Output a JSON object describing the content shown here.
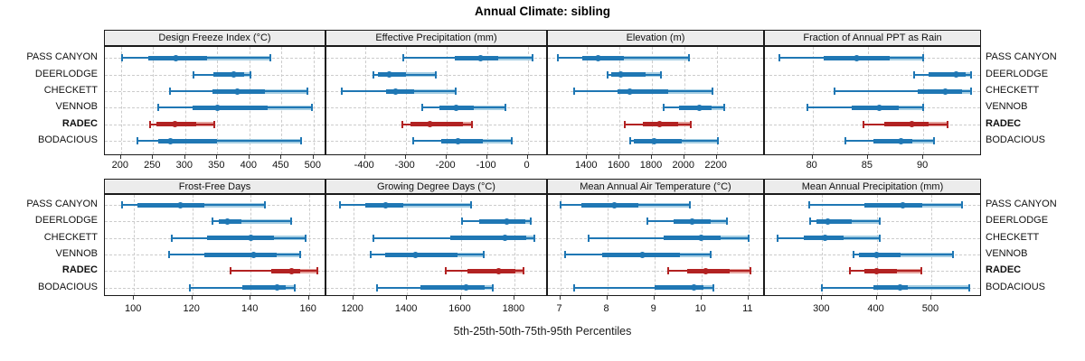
{
  "title": "Annual Climate: sibling",
  "footer": "5th-25th-50th-75th-95th Percentiles",
  "sites": [
    "PASS CANYON",
    "DEERLODGE",
    "CHECKETT",
    "VENNOB",
    "RADEC",
    "BODACIOUS"
  ],
  "highlight_site": "RADEC",
  "colors": {
    "blue": "#1f77b4",
    "blue_light": "#a6cee3",
    "red": "#b22222",
    "red_light": "#e4a29c",
    "grid": "#cccccc",
    "strip_bg": "#ececec",
    "border": "#1a1a1a"
  },
  "chart_data": {
    "type": "box",
    "note": "Dot-and-interval percentile plot; each row shows 5th, 25th, 50th, 75th, 95th percentiles per site. RADEC row highlighted in red.",
    "percentile_labels": [
      "5th",
      "25th",
      "50th",
      "75th",
      "95th"
    ],
    "legend_position": "none",
    "grid": "dashed",
    "panels": [
      {
        "key": "dfi",
        "title": "Design Freeze Index (°C)",
        "grid_row": 0,
        "grid_col": 0,
        "axis": {
          "min": 175,
          "max": 520,
          "ticks": [
            200,
            250,
            300,
            350,
            400,
            450,
            500
          ]
        },
        "stats": [
          {
            "site": "PASS CANYON",
            "p": [
              202,
              243,
              286,
              334,
              433
            ]
          },
          {
            "site": "DEERLODGE",
            "p": [
              313,
              344,
              375,
              392,
              401
            ]
          },
          {
            "site": "CHECKETT",
            "p": [
              277,
              343,
              381,
              424,
              491
            ]
          },
          {
            "site": "VENNOB",
            "p": [
              258,
              311,
              350,
              428,
              497
            ]
          },
          {
            "site": "RADEC",
            "p": [
              246,
              255,
              284,
              318,
              345
            ]
          },
          {
            "site": "BODACIOUS",
            "p": [
              226,
              258,
              277,
              350,
              480
            ]
          }
        ]
      },
      {
        "key": "ep",
        "title": "Effective Precipitation (mm)",
        "grid_row": 0,
        "grid_col": 1,
        "axis": {
          "min": -495,
          "max": 50,
          "ticks": [
            -400,
            -300,
            -200,
            -100,
            0
          ]
        },
        "stats": [
          {
            "site": "PASS CANYON",
            "p": [
              -305,
              -180,
              -115,
              -73,
              12
            ]
          },
          {
            "site": "DEERLODGE",
            "p": [
              -380,
              -368,
              -340,
              -300,
              -225
            ]
          },
          {
            "site": "CHECKETT",
            "p": [
              -457,
              -348,
              -325,
              -280,
              -178
            ]
          },
          {
            "site": "VENNOB",
            "p": [
              -259,
              -218,
              -177,
              -132,
              -54
            ]
          },
          {
            "site": "RADEC",
            "p": [
              -309,
              -288,
              -240,
              -158,
              -138
            ]
          },
          {
            "site": "BODACIOUS",
            "p": [
              -281,
              -213,
              -172,
              -110,
              -38
            ]
          }
        ]
      },
      {
        "key": "elev",
        "title": "Elevation (m)",
        "grid_row": 0,
        "grid_col": 2,
        "axis": {
          "min": 1158,
          "max": 2498,
          "ticks": [
            1400,
            1600,
            1800,
            2000,
            2200
          ]
        },
        "stats": [
          {
            "site": "PASS CANYON",
            "p": [
              1220,
              1370,
              1465,
              1625,
              2030
            ]
          },
          {
            "site": "DEERLODGE",
            "p": [
              1525,
              1550,
              1605,
              1760,
              1855
            ]
          },
          {
            "site": "CHECKETT",
            "p": [
              1320,
              1585,
              1665,
              1900,
              2175
            ]
          },
          {
            "site": "VENNOB",
            "p": [
              1870,
              1970,
              2095,
              2170,
              2245
            ]
          },
          {
            "site": "RADEC",
            "p": [
              1630,
              1745,
              1850,
              1965,
              2040
            ]
          },
          {
            "site": "BODACIOUS",
            "p": [
              1665,
              1690,
              1815,
              1985,
              2210
            ]
          }
        ]
      },
      {
        "key": "frac",
        "title": "Fraction of Annual PPT as Rain",
        "grid_row": 0,
        "grid_col": 3,
        "axis": {
          "min": 75.7,
          "max": 95.3,
          "ticks": [
            80,
            85,
            90
          ]
        },
        "stats": [
          {
            "site": "PASS CANYON",
            "p": [
              77,
              81,
              84,
              87,
              90
            ]
          },
          {
            "site": "DEERLODGE",
            "p": [
              89.2,
              90.5,
              93,
              93.8,
              94.3
            ]
          },
          {
            "site": "CHECKETT",
            "p": [
              82,
              89.5,
              92,
              93.5,
              94.3
            ]
          },
          {
            "site": "VENNOB",
            "p": [
              79.5,
              83.5,
              86,
              87.8,
              90
            ]
          },
          {
            "site": "RADEC",
            "p": [
              84.6,
              86.5,
              89,
              90.5,
              92.2
            ]
          },
          {
            "site": "BODACIOUS",
            "p": [
              83,
              85.5,
              88,
              89,
              91
            ]
          }
        ]
      },
      {
        "key": "ffd",
        "title": "Frost-Free Days",
        "grid_row": 1,
        "grid_col": 0,
        "axis": {
          "min": 90,
          "max": 166,
          "ticks": [
            100,
            120,
            140,
            160
          ]
        },
        "stats": [
          {
            "site": "PASS CANYON",
            "p": [
              96,
              101,
              116,
              124,
              145
            ]
          },
          {
            "site": "DEERLODGE",
            "p": [
              127,
              129,
              132,
              137,
              154
            ]
          },
          {
            "site": "CHECKETT",
            "p": [
              113,
              125,
              140,
              148,
              159
            ]
          },
          {
            "site": "VENNOB",
            "p": [
              112,
              124,
              141,
              149,
              157
            ]
          },
          {
            "site": "RADEC",
            "p": [
              133,
              147,
              154,
              157,
              163
            ]
          },
          {
            "site": "BODACIOUS",
            "p": [
              119,
              137,
              149,
              152,
              155
            ]
          }
        ]
      },
      {
        "key": "gdd",
        "title": "Growing Degree Days (°C)",
        "grid_row": 1,
        "grid_col": 1,
        "axis": {
          "min": 1100,
          "max": 1925,
          "ticks": [
            1200,
            1400,
            1600,
            1800
          ]
        },
        "stats": [
          {
            "site": "PASS CANYON",
            "p": [
              1150,
              1245,
              1320,
              1385,
              1640
            ]
          },
          {
            "site": "DEERLODGE",
            "p": [
              1605,
              1670,
              1770,
              1840,
              1860
            ]
          },
          {
            "site": "CHECKETT",
            "p": [
              1275,
              1560,
              1765,
              1845,
              1875
            ]
          },
          {
            "site": "VENNOB",
            "p": [
              1265,
              1320,
              1430,
              1590,
              1685
            ]
          },
          {
            "site": "RADEC",
            "p": [
              1545,
              1625,
              1740,
              1805,
              1835
            ]
          },
          {
            "site": "BODACIOUS",
            "p": [
              1290,
              1450,
              1620,
              1690,
              1720
            ]
          }
        ]
      },
      {
        "key": "maat",
        "title": "Mean Annual Air Temperature (°C)",
        "grid_row": 1,
        "grid_col": 2,
        "axis": {
          "min": 6.74,
          "max": 11.35,
          "ticks": [
            7,
            8,
            9,
            10,
            11
          ]
        },
        "stats": [
          {
            "site": "PASS CANYON",
            "p": [
              7.0,
              7.45,
              8.15,
              8.65,
              9.75
            ]
          },
          {
            "site": "DEERLODGE",
            "p": [
              8.85,
              9.4,
              9.8,
              10.2,
              10.55
            ]
          },
          {
            "site": "CHECKETT",
            "p": [
              7.6,
              9.2,
              10.0,
              10.4,
              11.0
            ]
          },
          {
            "site": "VENNOB",
            "p": [
              7.1,
              7.9,
              8.75,
              9.55,
              10.2
            ]
          },
          {
            "site": "RADEC",
            "p": [
              9.3,
              9.7,
              10.1,
              10.6,
              11.05
            ]
          },
          {
            "site": "BODACIOUS",
            "p": [
              7.3,
              9.0,
              9.85,
              10.05,
              10.25
            ]
          }
        ]
      },
      {
        "key": "map",
        "title": "Mean Annual Precipitation (mm)",
        "grid_row": 1,
        "grid_col": 3,
        "axis": {
          "min": 195,
          "max": 593,
          "ticks": [
            300,
            400,
            500
          ]
        },
        "stats": [
          {
            "site": "PASS CANYON",
            "p": [
              277,
              378,
              447,
              483,
              557
            ]
          },
          {
            "site": "DEERLODGE",
            "p": [
              278,
              290,
              310,
              355,
              405
            ]
          },
          {
            "site": "CHECKETT",
            "p": [
              218,
              267,
              306,
              339,
              405
            ]
          },
          {
            "site": "VENNOB",
            "p": [
              358,
              368,
              400,
              444,
              540
            ]
          },
          {
            "site": "RADEC",
            "p": [
              350,
              377,
              400,
              438,
              482
            ]
          },
          {
            "site": "BODACIOUS",
            "p": [
              299,
              394,
              443,
              457,
              570
            ]
          }
        ]
      }
    ]
  }
}
